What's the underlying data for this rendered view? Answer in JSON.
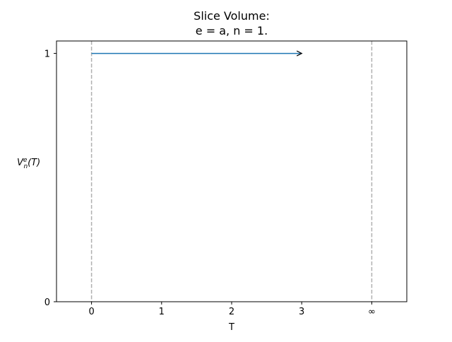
{
  "chart_data": {
    "type": "line",
    "title_lines": [
      "Slice Volume:",
      "e = a, n = 1."
    ],
    "xlabel": "T",
    "ylabel": {
      "base": "V",
      "superscript": "e",
      "subscript": "n",
      "suffix": "(T)"
    },
    "xlim": [
      -0.5,
      4.5
    ],
    "ylim": [
      0,
      1.05
    ],
    "xticks": [
      {
        "value": 0,
        "label": "0"
      },
      {
        "value": 1,
        "label": "1"
      },
      {
        "value": 2,
        "label": "2"
      },
      {
        "value": 3,
        "label": "3"
      },
      {
        "value": 4,
        "label": "∞"
      }
    ],
    "yticks": [
      {
        "value": 0,
        "label": "0"
      },
      {
        "value": 1,
        "label": "1"
      }
    ],
    "vlines": [
      {
        "x": 0,
        "style": "dashed",
        "color": "#b0b0b0"
      },
      {
        "x": 4,
        "style": "dashed",
        "color": "#b0b0b0"
      }
    ],
    "series": [
      {
        "x": [
          0,
          3
        ],
        "y": [
          1,
          1
        ],
        "color": "#1f77b4",
        "end_marker": "arrow"
      }
    ],
    "grid": false,
    "legend": "none"
  }
}
